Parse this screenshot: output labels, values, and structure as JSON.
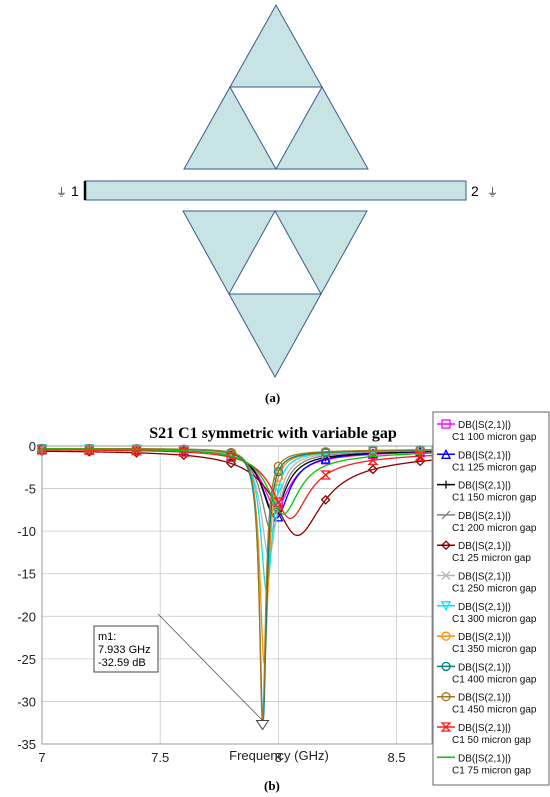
{
  "figure": {
    "part_a_label": "(a)",
    "part_b_label": "(b)",
    "port_left": "1",
    "port_right": "2",
    "ground_symbol": "⏚",
    "fill_color": "#c7e3e3",
    "stroke_color": "#3a5a8c"
  },
  "chart_data": {
    "type": "line",
    "title": "S21 C1 symmetric with variable gap",
    "xlabel": "Frequency (GHz)",
    "ylabel": "",
    "xlim": [
      7,
      8.65
    ],
    "ylim": [
      -35,
      0
    ],
    "x_ticks": [
      "7",
      "7.5",
      "8",
      "8.5"
    ],
    "y_ticks": [
      "0",
      "-5",
      "-10",
      "-15",
      "-20",
      "-25",
      "-30",
      "-35"
    ],
    "grid": true,
    "legend_placement": "right",
    "series": [
      {
        "name": "DB(|S(2,1)|)",
        "subtitle": "C1 100 micron gap",
        "color": "#ff00ff",
        "marker": "square",
        "f0": 7.99,
        "dip": -7.2,
        "w": 0.07,
        "base": -0.3,
        "tail": -1.0
      },
      {
        "name": "DB(|S(2,1)|)",
        "subtitle": "C1 125 micron gap",
        "color": "#0000ff",
        "marker": "triangle",
        "f0": 7.99,
        "dip": -8.5,
        "w": 0.065,
        "base": -0.3,
        "tail": -0.8
      },
      {
        "name": "DB(|S(2,1)|)",
        "subtitle": "C1 150 micron gap",
        "color": "#000000",
        "marker": "plus",
        "f0": 7.98,
        "dip": -8.0,
        "w": 0.06,
        "base": -0.3,
        "tail": -0.8
      },
      {
        "name": "DB(|S(2,1)|)",
        "subtitle": "C1 200 micron gap",
        "color": "#808080",
        "marker": "slash",
        "f0": 7.97,
        "dip": -10.0,
        "w": 0.05,
        "base": -0.3,
        "tail": -0.6
      },
      {
        "name": "DB(|S(2,1)|)",
        "subtitle": "C1 25 micron gap",
        "color": "#8b0000",
        "marker": "diamond",
        "f0": 8.08,
        "dip": -10.5,
        "w": 0.12,
        "base": -0.5,
        "tail": -2.0
      },
      {
        "name": "DB(|S(2,1)|)",
        "subtitle": "C1 250 micron gap",
        "color": "#b8b8b8",
        "marker": "cross",
        "f0": 7.96,
        "dip": -13.0,
        "w": 0.04,
        "base": -0.3,
        "tail": -0.5
      },
      {
        "name": "DB(|S(2,1)|)",
        "subtitle": "C1 300 micron gap",
        "color": "#00e5ee",
        "marker": "triangle-down",
        "f0": 7.95,
        "dip": -17.0,
        "w": 0.03,
        "base": -0.3,
        "tail": -0.5
      },
      {
        "name": "DB(|S(2,1)|)",
        "subtitle": "C1 350 micron gap",
        "color": "#ff8c00",
        "marker": "circle",
        "f0": 7.94,
        "dip": -25.5,
        "w": 0.022,
        "base": -0.3,
        "tail": -0.5
      },
      {
        "name": "DB(|S(2,1)|)",
        "subtitle": "C1 400 micron gap",
        "color": "#008080",
        "marker": "circle",
        "f0": 7.935,
        "dip": -32.5,
        "w": 0.018,
        "base": -0.3,
        "tail": -0.5
      },
      {
        "name": "DB(|S(2,1)|)",
        "subtitle": "C1 450 micron gap",
        "color": "#a0781e",
        "marker": "circle",
        "f0": 7.933,
        "dip": -32.59,
        "w": 0.016,
        "base": -0.3,
        "tail": -0.4
      },
      {
        "name": "DB(|S(2,1)|)",
        "subtitle": "C1 50 micron gap",
        "color": "#ff1a1a",
        "marker": "hourglass",
        "f0": 8.05,
        "dip": -8.5,
        "w": 0.09,
        "base": -0.4,
        "tail": -1.5
      },
      {
        "name": "DB(|S(2,1)|)",
        "subtitle": "C1 75 micron gap",
        "color": "#00c800",
        "marker": "none",
        "f0": 8.02,
        "dip": -8.0,
        "w": 0.08,
        "base": -0.3,
        "tail": -1.2
      }
    ],
    "marker_annotation": {
      "label": "m1:",
      "freq_text": "7.933 GHz",
      "value_text": "-32.59 dB",
      "x": 7.933,
      "y": -32.59
    }
  }
}
